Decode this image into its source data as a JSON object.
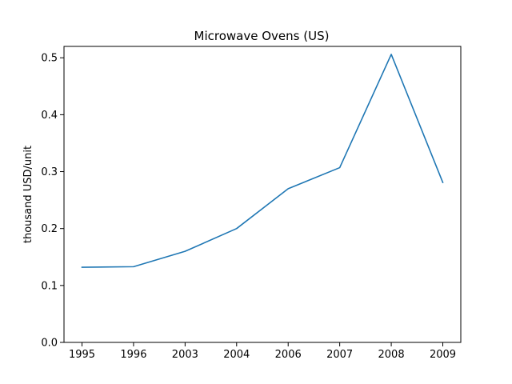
{
  "chart_data": {
    "type": "line",
    "title": "Microwave Ovens (US)",
    "xlabel": "",
    "ylabel": "thousand USD/unit",
    "categories": [
      "1995",
      "1996",
      "2003",
      "2004",
      "2006",
      "2007",
      "2008",
      "2009"
    ],
    "series": [
      {
        "values": [
          0.132,
          0.133,
          0.16,
          0.2,
          0.27,
          0.307,
          0.506,
          0.281
        ],
        "color": "#1f77b4"
      }
    ],
    "ylim": [
      0,
      0.52
    ],
    "yticks": [
      "0.0",
      "0.1",
      "0.2",
      "0.3",
      "0.4",
      "0.5"
    ],
    "grid": false,
    "legend": "none"
  }
}
